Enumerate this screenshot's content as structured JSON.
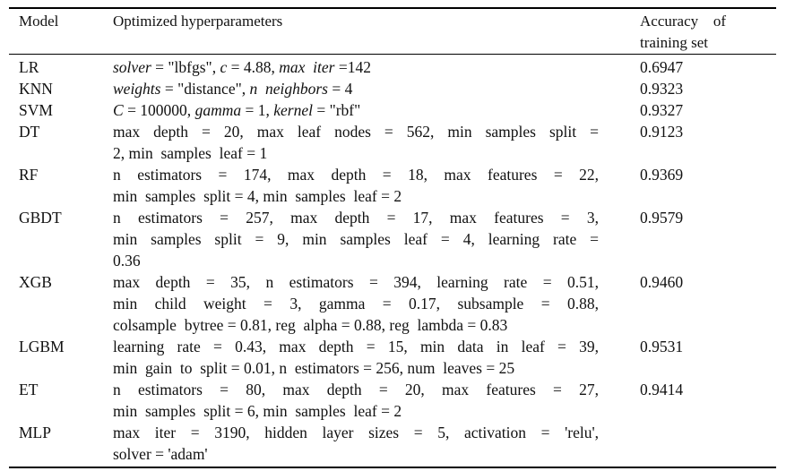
{
  "header": {
    "model": "Model",
    "params": "Optimized hyperparameters",
    "accuracy": "Accuracy of training set"
  },
  "rows": [
    {
      "model": "LR",
      "accuracy": "0.6947",
      "p": [
        "solver",
        " = \"lbfgs\", ",
        "c",
        " = 4.88, ",
        "max  iter",
        " =142"
      ]
    },
    {
      "model": "KNN",
      "accuracy": "0.9323",
      "p": [
        "weights",
        " = \"distance\", ",
        "n  neighbors",
        " = 4"
      ]
    },
    {
      "model": "SVM",
      "accuracy": "0.9327",
      "p": [
        "C",
        " = 100000, ",
        "gamma",
        " = 1, ",
        "kernel",
        " = \"rbf\""
      ]
    },
    {
      "model": "DT",
      "accuracy": "0.9123",
      "lines": [
        "max  depth = 20, max  leaf  nodes = 562, min  samples  split =",
        "2, min  samples  leaf = 1"
      ]
    },
    {
      "model": "RF",
      "accuracy": "0.9369",
      "lines": [
        "n  estimators = 174, max  depth = 18, max  features = 22,",
        "min  samples  split = 4, min  samples  leaf = 2"
      ]
    },
    {
      "model": "GBDT",
      "accuracy": "0.9579",
      "lines": [
        "n  estimators  =  257,  max  depth  =  17,  max  features  =  3,",
        "min  samples  split = 9, min  samples  leaf = 4, learning  rate =",
        "0.36"
      ]
    },
    {
      "model": "XGB",
      "accuracy": "0.9460",
      "lines": [
        "max  depth = 35, n  estimators = 394, learning  rate = 0.51,",
        "min  child  weight = 3, gamma = 0.17, subsample = 0.88,",
        "colsample  bytree = 0.81, reg  alpha = 0.88, reg  lambda = 0.83"
      ]
    },
    {
      "model": "LGBM",
      "accuracy": "0.9531",
      "lines": [
        "learning  rate = 0.43, max  depth = 15, min  data  in  leaf = 39,",
        "min  gain  to  split = 0.01, n  estimators = 256, num  leaves = 25"
      ]
    },
    {
      "model": "ET",
      "accuracy": "0.9414",
      "lines": [
        "n  estimators  =  80,  max  depth  =  20,  max  features  =  27,",
        "min  samples  split = 6, min  samples  leaf = 2"
      ]
    },
    {
      "model": "MLP",
      "accuracy": "",
      "lines": [
        "max  iter  =  3190,  hidden  layer  sizes  =  5,  activation  =  'relu',",
        "solver = 'adam'"
      ]
    }
  ]
}
